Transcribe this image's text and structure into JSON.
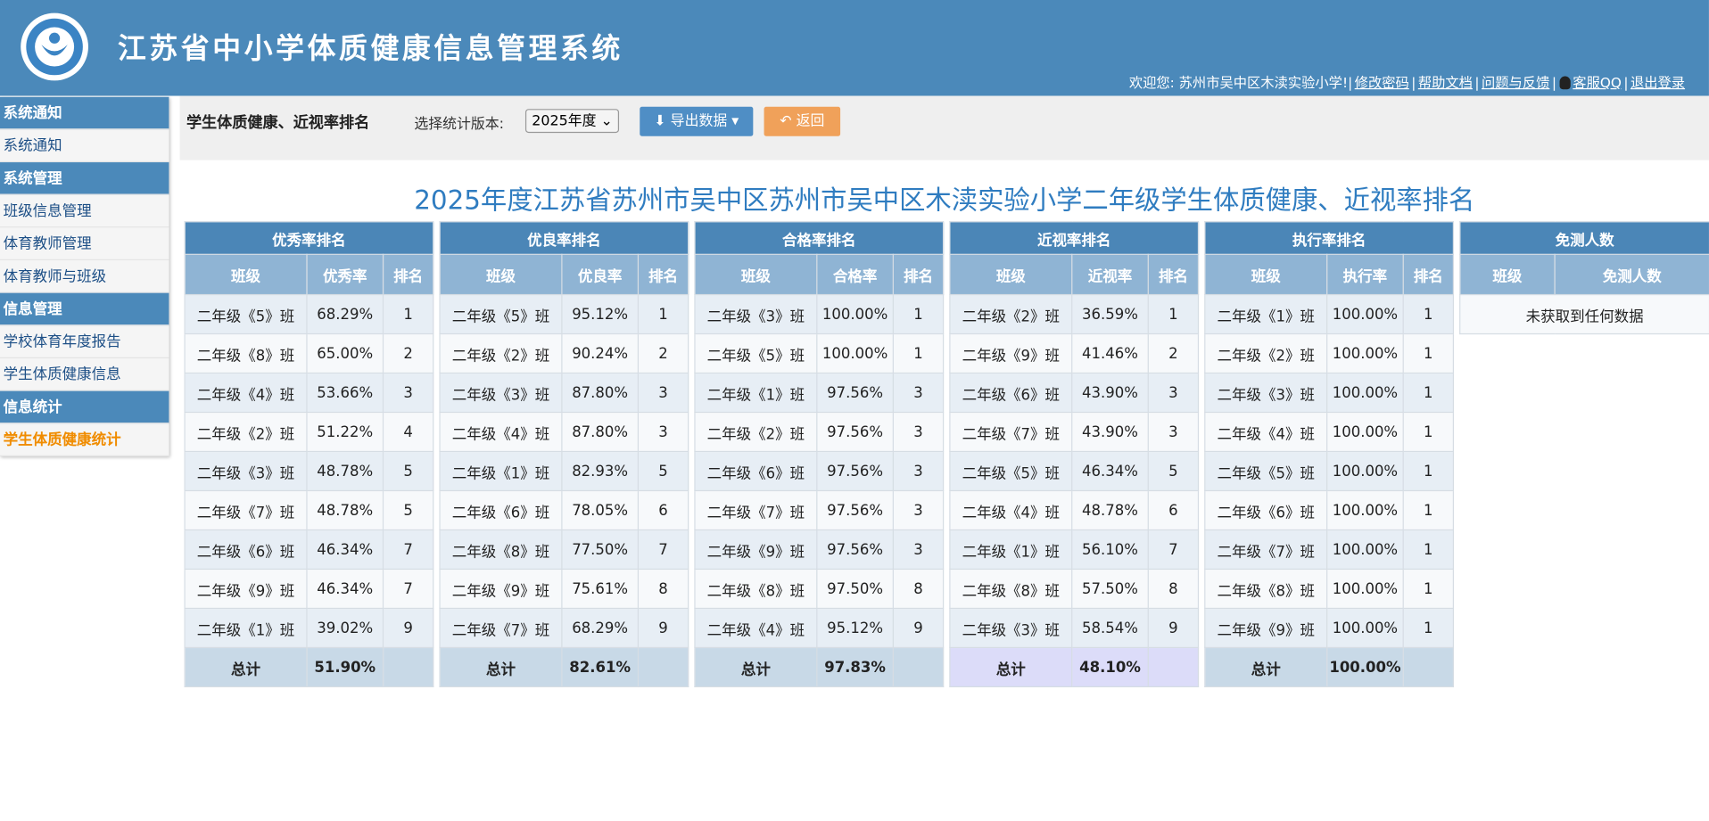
{
  "header": {
    "title": "江苏省中小学体质健康信息管理系统",
    "welcome": "欢迎您: 苏州市吴中区木渎实验小学!",
    "separator": "|",
    "links": [
      "修改密码",
      "帮助文档",
      "问题与反馈",
      "客服QQ",
      "退出登录"
    ]
  },
  "sidebar": [
    {
      "section": "系统通知",
      "items": [
        "系统通知"
      ]
    },
    {
      "section": "系统管理",
      "items": [
        "班级信息管理",
        "体育教师管理",
        "体育教师与班级"
      ]
    },
    {
      "section": "信息管理",
      "items": [
        "学校体育年度报告",
        "学生体质健康信息"
      ]
    },
    {
      "section": "信息统计",
      "items": [
        "学生体质健康统计"
      ]
    }
  ],
  "toolbar": {
    "title": "学生体质健康、近视率排名",
    "version_label": "选择统计版本:",
    "version": "2025年度",
    "export": "导出数据",
    "back": "返回"
  },
  "report_title": "2025年度江苏省苏州市吴中区苏州市吴中区木渎实验小学二年级学生体质健康、近视率排名",
  "tables": [
    {
      "title": "优秀率排名",
      "columns": [
        "班级",
        "优秀率",
        "排名"
      ],
      "rows": [
        [
          "二年级《5》班",
          "68.29%",
          "1"
        ],
        [
          "二年级《8》班",
          "65.00%",
          "2"
        ],
        [
          "二年级《4》班",
          "53.66%",
          "3"
        ],
        [
          "二年级《2》班",
          "51.22%",
          "4"
        ],
        [
          "二年级《3》班",
          "48.78%",
          "5"
        ],
        [
          "二年级《7》班",
          "48.78%",
          "5"
        ],
        [
          "二年级《6》班",
          "46.34%",
          "7"
        ],
        [
          "二年级《9》班",
          "46.34%",
          "7"
        ],
        [
          "二年级《1》班",
          "39.02%",
          "9"
        ]
      ],
      "total": [
        "总计",
        "51.90%"
      ]
    },
    {
      "title": "优良率排名",
      "columns": [
        "班级",
        "优良率",
        "排名"
      ],
      "rows": [
        [
          "二年级《5》班",
          "95.12%",
          "1"
        ],
        [
          "二年级《2》班",
          "90.24%",
          "2"
        ],
        [
          "二年级《3》班",
          "87.80%",
          "3"
        ],
        [
          "二年级《4》班",
          "87.80%",
          "3"
        ],
        [
          "二年级《1》班",
          "82.93%",
          "5"
        ],
        [
          "二年级《6》班",
          "78.05%",
          "6"
        ],
        [
          "二年级《8》班",
          "77.50%",
          "7"
        ],
        [
          "二年级《9》班",
          "75.61%",
          "8"
        ],
        [
          "二年级《7》班",
          "68.29%",
          "9"
        ]
      ],
      "total": [
        "总计",
        "82.61%"
      ]
    },
    {
      "title": "合格率排名",
      "columns": [
        "班级",
        "合格率",
        "排名"
      ],
      "rows": [
        [
          "二年级《3》班",
          "100.00%",
          "1"
        ],
        [
          "二年级《5》班",
          "100.00%",
          "1"
        ],
        [
          "二年级《1》班",
          "97.56%",
          "3"
        ],
        [
          "二年级《2》班",
          "97.56%",
          "3"
        ],
        [
          "二年级《6》班",
          "97.56%",
          "3"
        ],
        [
          "二年级《7》班",
          "97.56%",
          "3"
        ],
        [
          "二年级《9》班",
          "97.56%",
          "3"
        ],
        [
          "二年级《8》班",
          "97.50%",
          "8"
        ],
        [
          "二年级《4》班",
          "95.12%",
          "9"
        ]
      ],
      "total": [
        "总计",
        "97.83%"
      ]
    },
    {
      "title": "近视率排名",
      "columns": [
        "班级",
        "近视率",
        "排名"
      ],
      "rows": [
        [
          "二年级《2》班",
          "36.59%",
          "1"
        ],
        [
          "二年级《9》班",
          "41.46%",
          "2"
        ],
        [
          "二年级《6》班",
          "43.90%",
          "3"
        ],
        [
          "二年级《7》班",
          "43.90%",
          "3"
        ],
        [
          "二年级《5》班",
          "46.34%",
          "5"
        ],
        [
          "二年级《4》班",
          "48.78%",
          "6"
        ],
        [
          "二年级《1》班",
          "56.10%",
          "7"
        ],
        [
          "二年级《8》班",
          "57.50%",
          "8"
        ],
        [
          "二年级《3》班",
          "58.54%",
          "9"
        ]
      ],
      "total": [
        "总计",
        "48.10%"
      ]
    },
    {
      "title": "执行率排名",
      "columns": [
        "班级",
        "执行率",
        "排名"
      ],
      "rows": [
        [
          "二年级《1》班",
          "100.00%",
          "1"
        ],
        [
          "二年级《2》班",
          "100.00%",
          "1"
        ],
        [
          "二年级《3》班",
          "100.00%",
          "1"
        ],
        [
          "二年级《4》班",
          "100.00%",
          "1"
        ],
        [
          "二年级《5》班",
          "100.00%",
          "1"
        ],
        [
          "二年级《6》班",
          "100.00%",
          "1"
        ],
        [
          "二年级《7》班",
          "100.00%",
          "1"
        ],
        [
          "二年级《8》班",
          "100.00%",
          "1"
        ],
        [
          "二年级《9》班",
          "100.00%",
          "1"
        ]
      ],
      "total": [
        "总计",
        "100.00%"
      ]
    },
    {
      "title": "免测人数",
      "columns": [
        "班级",
        "免测人数"
      ],
      "empty": "未获取到任何数据"
    }
  ]
}
